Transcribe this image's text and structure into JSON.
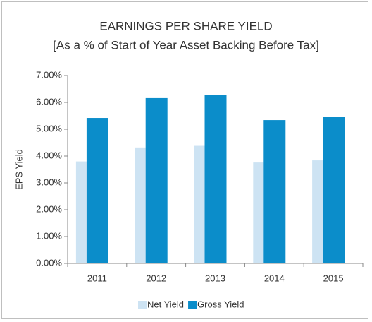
{
  "chart_data": {
    "type": "bar",
    "title": [
      "EARNINGS PER SHARE YIELD",
      "[As a % of Start of Year Asset Backing Before Tax]"
    ],
    "y_label": "EPS Yield",
    "categories": [
      "2011",
      "2012",
      "2013",
      "2014",
      "2015"
    ],
    "series": [
      {
        "name": "Net Yield",
        "color": "#cde3f3",
        "values": [
          3.8,
          4.32,
          4.38,
          3.76,
          3.84
        ]
      },
      {
        "name": "Gross Yield",
        "color": "#0b8dca",
        "values": [
          5.42,
          6.16,
          6.27,
          5.34,
          5.46
        ]
      }
    ],
    "ylim": [
      0,
      7
    ],
    "yticks": [
      {
        "value": 0,
        "label": "0.00%"
      },
      {
        "value": 1,
        "label": "1.00%"
      },
      {
        "value": 2,
        "label": "2.00%"
      },
      {
        "value": 3,
        "label": "3.00%"
      },
      {
        "value": 4,
        "label": "4.00%"
      },
      {
        "value": 5,
        "label": "5.00%"
      },
      {
        "value": 6,
        "label": "6.00%"
      },
      {
        "value": 7,
        "label": "7.00%"
      }
    ],
    "grid": false,
    "legend": "bottom"
  }
}
